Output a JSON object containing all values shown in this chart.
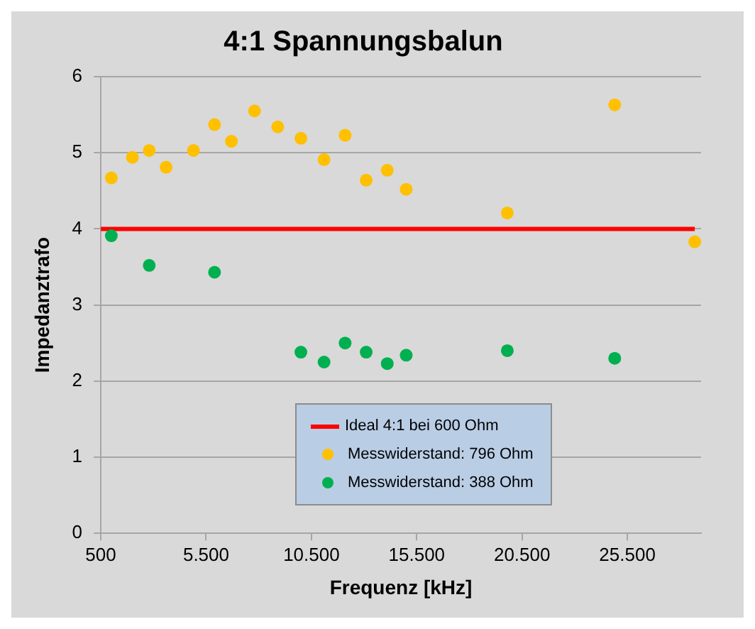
{
  "chart_data": {
    "type": "scatter",
    "title": "4:1 Spannungsbalun",
    "xlabel": "Frequenz [kHz]",
    "ylabel": "Impedanztrafo",
    "xlim": [
      500,
      29000
    ],
    "xticks": [
      {
        "value": 500,
        "label": "500"
      },
      {
        "value": 5500,
        "label": "5.500"
      },
      {
        "value": 10500,
        "label": "10.500"
      },
      {
        "value": 15500,
        "label": "15.500"
      },
      {
        "value": 20500,
        "label": "20.500"
      },
      {
        "value": 25500,
        "label": "25.500"
      }
    ],
    "ylim": [
      0,
      6
    ],
    "yticks": [
      0,
      1,
      2,
      3,
      4,
      5,
      6
    ],
    "grid": "y",
    "legend": "bottom",
    "marker": "circle",
    "series": [
      {
        "name": "Ideal 4:1 bei 600 Ohm",
        "type": "line",
        "marker": "none",
        "color": "#ff0000",
        "x": [
          500,
          28700
        ],
        "values": [
          4,
          4
        ]
      },
      {
        "name": "Messwiderstand: 796 Ohm",
        "color": "#ffc000",
        "x": [
          1000,
          2000,
          2800,
          3600,
          4900,
          5900,
          6700,
          7800,
          8900,
          10000,
          11100,
          12100,
          13100,
          14100,
          15000,
          19800,
          24900,
          28700
        ],
        "values": [
          4.67,
          4.94,
          5.03,
          4.81,
          5.03,
          5.37,
          5.15,
          5.55,
          5.34,
          5.19,
          4.91,
          5.23,
          4.64,
          4.77,
          4.52,
          4.21,
          5.63,
          3.83
        ]
      },
      {
        "name": "Messwiderstand: 388 Ohm",
        "color": "#00b050",
        "x": [
          1000,
          2800,
          5900,
          10000,
          11100,
          12100,
          13100,
          14100,
          15000,
          19800,
          24900
        ],
        "values": [
          3.91,
          3.52,
          3.43,
          2.38,
          2.25,
          2.5,
          2.38,
          2.23,
          2.34,
          2.4,
          2.3
        ]
      }
    ]
  }
}
